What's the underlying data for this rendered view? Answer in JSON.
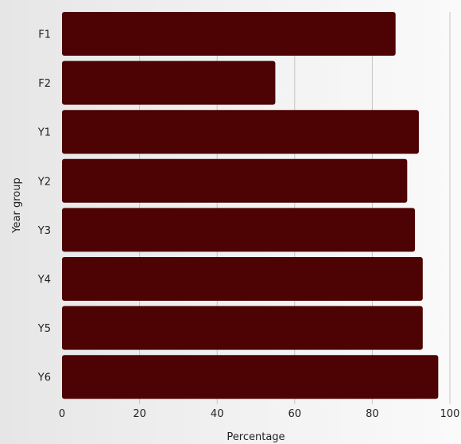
{
  "chart_data": {
    "type": "bar",
    "orientation": "horizontal",
    "categories": [
      "F1",
      "F2",
      "Y1",
      "Y2",
      "Y3",
      "Y4",
      "Y5",
      "Y6"
    ],
    "values": [
      86,
      55,
      92,
      89,
      91,
      93,
      93,
      97
    ],
    "xlabel": "Percentage",
    "ylabel": "Year group",
    "xlim": [
      0,
      100
    ],
    "xticks": [
      "0",
      "20",
      "40",
      "60",
      "80",
      "100"
    ],
    "grid": "vertical",
    "bar_color": "#4d0303"
  }
}
